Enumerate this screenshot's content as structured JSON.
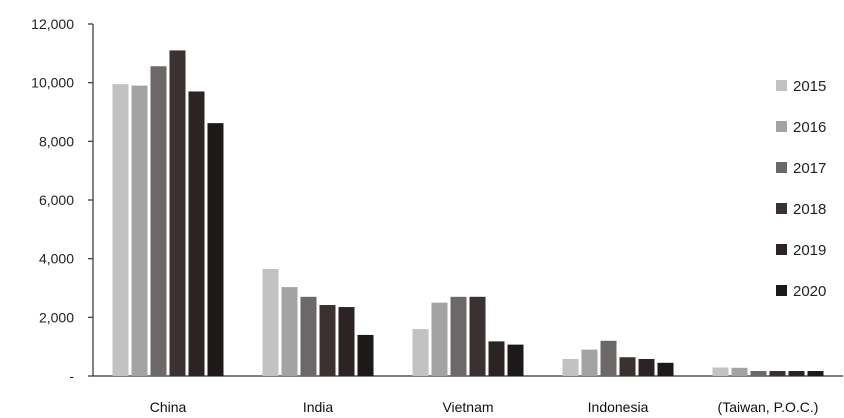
{
  "chart_data": {
    "type": "bar",
    "title": "",
    "xlabel": "",
    "ylabel": "",
    "categories": [
      "China",
      "India",
      "Vietnam",
      "Indonesia",
      "(Taiwan, P.O.C.)"
    ],
    "series": [
      {
        "name": "2015",
        "color": "#c2c2c2",
        "values": [
          9950,
          3650,
          1600,
          580,
          290
        ]
      },
      {
        "name": "2016",
        "color": "#a3a3a3",
        "values": [
          9900,
          3030,
          2500,
          900,
          280
        ]
      },
      {
        "name": "2017",
        "color": "#6d6868",
        "values": [
          10560,
          2700,
          2700,
          1200,
          170
        ]
      },
      {
        "name": "2018",
        "color": "#3b3131",
        "values": [
          11100,
          2420,
          2700,
          640,
          170
        ]
      },
      {
        "name": "2019",
        "color": "#2c2424",
        "values": [
          9700,
          2350,
          1180,
          580,
          170
        ]
      },
      {
        "name": "2020",
        "color": "#1e1919",
        "values": [
          8620,
          1400,
          1070,
          450,
          170
        ]
      }
    ],
    "ylim": [
      0,
      12000
    ],
    "yticks": [
      0,
      2000,
      4000,
      6000,
      8000,
      10000,
      12000
    ],
    "ytick_labels": [
      "-",
      "2,000",
      "4,000",
      "6,000",
      "8,000",
      "10,000",
      "12,000"
    ],
    "grid": false,
    "legend": "right"
  }
}
